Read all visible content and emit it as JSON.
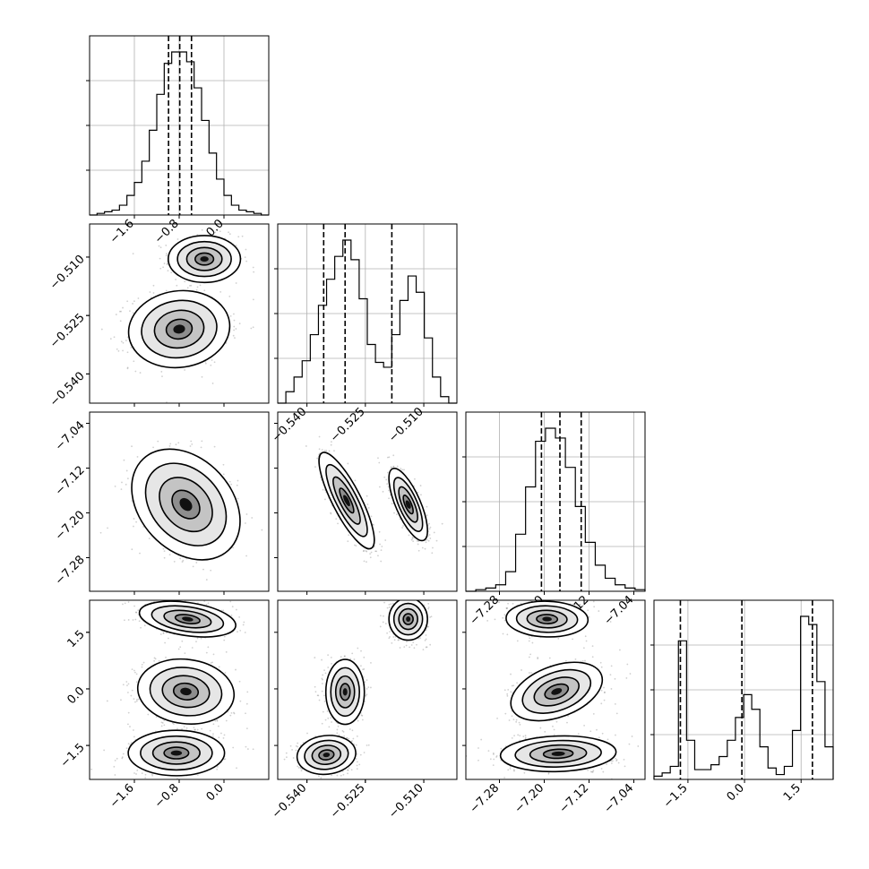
{
  "chart_data": {
    "type": "corner",
    "n_params": 4,
    "params": [
      {
        "range": [
          -2.4,
          0.8
        ],
        "ticks": [
          -1.6,
          -0.8,
          0.0
        ],
        "tick_labels": [
          "−1.6",
          "−0.8",
          "0.0"
        ],
        "quantiles": [
          -0.99,
          -0.79,
          -0.58
        ]
      },
      {
        "range": [
          -0.5475,
          -0.5015
        ],
        "ticks": [
          -0.54,
          -0.525,
          -0.51
        ],
        "tick_labels": [
          "−0.540",
          "−0.525",
          "−0.510"
        ],
        "quantiles": [
          -0.5357,
          -0.5302,
          -0.5182
        ]
      },
      {
        "range": [
          -7.34,
          -7.02
        ],
        "ticks": [
          -7.28,
          -7.2,
          -7.12,
          -7.04
        ],
        "tick_labels": [
          "−7.28",
          "−7.20",
          "−7.12",
          "−7.04"
        ],
        "quantiles": [
          -7.205,
          -7.172,
          -7.134
        ]
      },
      {
        "range": [
          -2.4,
          2.35
        ],
        "ticks": [
          -1.5,
          0.0,
          1.5
        ],
        "tick_labels": [
          "−1.5",
          "0.0",
          "1.5"
        ],
        "quantiles": [
          -1.7,
          -0.07,
          1.8
        ]
      }
    ],
    "histograms": [
      {
        "counts": [
          0,
          1,
          2,
          3,
          6,
          12,
          20,
          33,
          52,
          74,
          93,
          100,
          100,
          94,
          78,
          58,
          38,
          22,
          12,
          6,
          3,
          2,
          1,
          0
        ]
      },
      {
        "counts": [
          0,
          7,
          16,
          26,
          42,
          60,
          76,
          90,
          100,
          88,
          64,
          36,
          25,
          22,
          42,
          63,
          78,
          68,
          40,
          16,
          4,
          0
        ]
      },
      {
        "counts": [
          0,
          1,
          2,
          4,
          12,
          35,
          64,
          92,
          100,
          94,
          76,
          52,
          30,
          16,
          8,
          4,
          2,
          1
        ]
      },
      {
        "counts": [
          2,
          4,
          8,
          85,
          24,
          6,
          6,
          9,
          14,
          24,
          38,
          52,
          43,
          20,
          7,
          3,
          8,
          30,
          100,
          95,
          60,
          20
        ]
      }
    ],
    "pairs": [
      {
        "x": 0,
        "y": 1,
        "clusters": [
          {
            "center": [
              -0.35,
              -0.5105
            ],
            "sx": 0.3,
            "sy": 0.0028,
            "rho": 0.0
          },
          {
            "center": [
              -0.8,
              -0.5285
            ],
            "sx": 0.42,
            "sy": 0.0046,
            "rho": 0.08
          }
        ]
      },
      {
        "x": 0,
        "y": 2,
        "clusters": [
          {
            "center": [
              -0.68,
              -7.185
            ],
            "sx": 0.45,
            "sy": 0.046,
            "rho": -0.3
          }
        ]
      },
      {
        "x": 1,
        "y": 2,
        "clusters": [
          {
            "center": [
              -0.5298,
              -7.178
            ],
            "sx": 0.0033,
            "sy": 0.04,
            "rho": -0.82
          },
          {
            "center": [
              -0.514,
              -7.185
            ],
            "sx": 0.0023,
            "sy": 0.03,
            "rho": -0.72
          }
        ]
      },
      {
        "x": 0,
        "y": 3,
        "clusters": [
          {
            "center": [
              -0.65,
              1.85
            ],
            "sx": 0.4,
            "sy": 0.22,
            "rho": -0.35
          },
          {
            "center": [
              -0.68,
              -0.07
            ],
            "sx": 0.4,
            "sy": 0.4,
            "rho": -0.1
          },
          {
            "center": [
              -0.85,
              -1.7
            ],
            "sx": 0.4,
            "sy": 0.28,
            "rho": 0.0
          }
        ]
      },
      {
        "x": 1,
        "y": 3,
        "clusters": [
          {
            "center": [
              -0.514,
              1.85
            ],
            "sx": 0.0023,
            "sy": 0.26,
            "rho": 0.0
          },
          {
            "center": [
              -0.5302,
              -0.08
            ],
            "sx": 0.0023,
            "sy": 0.4,
            "rho": 0.0
          },
          {
            "center": [
              -0.535,
              -1.75
            ],
            "sx": 0.0035,
            "sy": 0.24,
            "rho": 0.1
          }
        ]
      },
      {
        "x": 2,
        "y": 3,
        "clusters": [
          {
            "center": [
              -7.195,
              1.85
            ],
            "sx": 0.034,
            "sy": 0.22,
            "rho": -0.05
          },
          {
            "center": [
              -7.178,
              -0.07
            ],
            "sx": 0.038,
            "sy": 0.36,
            "rho": 0.4
          },
          {
            "center": [
              -7.175,
              -1.72
            ],
            "sx": 0.048,
            "sy": 0.22,
            "rho": 0.1
          }
        ]
      }
    ]
  }
}
